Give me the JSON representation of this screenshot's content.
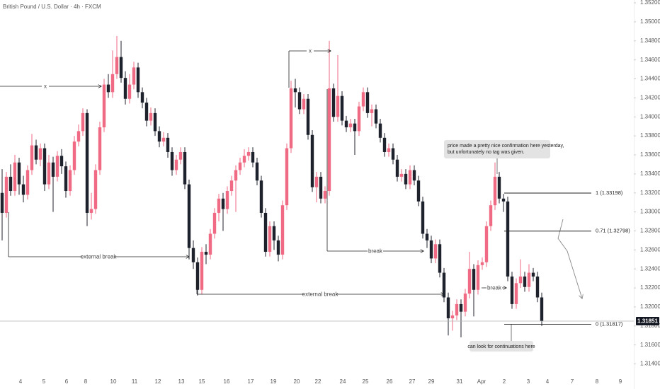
{
  "chart_data": {
    "type": "candlestick",
    "title": "British Pound / U.S. Dollar · 4h · FXCM",
    "up_color": "#ef6a82",
    "down_color": "#1e222d",
    "ylim": [
      1.313,
      1.3523
    ],
    "yticks": [
      {
        "value": 1.314,
        "label": "1.31400"
      },
      {
        "value": 1.316,
        "label": "1.31600"
      },
      {
        "value": 1.318,
        "label": "1.31800"
      },
      {
        "value": 1.32,
        "label": "1.32000"
      },
      {
        "value": 1.322,
        "label": "1.32200"
      },
      {
        "value": 1.324,
        "label": "1.32400"
      },
      {
        "value": 1.326,
        "label": "1.32600"
      },
      {
        "value": 1.328,
        "label": "1.32800"
      },
      {
        "value": 1.33,
        "label": "1.33000"
      },
      {
        "value": 1.332,
        "label": "1.33200"
      },
      {
        "value": 1.334,
        "label": "1.33400"
      },
      {
        "value": 1.336,
        "label": "1.33600"
      },
      {
        "value": 1.338,
        "label": "1.33800"
      },
      {
        "value": 1.34,
        "label": "1.34000"
      },
      {
        "value": 1.342,
        "label": "1.34200"
      },
      {
        "value": 1.344,
        "label": "1.34400"
      },
      {
        "value": 1.346,
        "label": "1.34600"
      },
      {
        "value": 1.348,
        "label": "1.34800"
      },
      {
        "value": 1.35,
        "label": "1.35000"
      },
      {
        "value": 1.352,
        "label": "1.35200"
      }
    ],
    "x_labels": [
      "4",
      "5",
      "6",
      "8",
      "10",
      "11",
      "12",
      "13",
      "15",
      "16",
      "17",
      "19",
      "20",
      "22",
      "24",
      "25",
      "26",
      "27",
      "29",
      "31",
      "Apr",
      "2",
      "3",
      "4",
      "7",
      "8",
      "9"
    ],
    "last_price": 1.31851,
    "fib_levels": [
      {
        "value": 1.33198,
        "label": "1 (1.33198)"
      },
      {
        "value": 1.32798,
        "label": "0.71 (1.32798)"
      },
      {
        "value": 1.31817,
        "label": "0 (1.31817)"
      }
    ],
    "annotations": [
      "x",
      "x",
      "external break",
      "break",
      "external break",
      "break",
      "price made a pretty nice confirmation here yesterday,",
      "but unfortunately no tag was given.",
      "can look for continuations here"
    ],
    "candles": [
      [
        1.332,
        1.3345,
        1.327,
        1.3299
      ],
      [
        1.3299,
        1.3342,
        1.3294,
        1.3337
      ],
      [
        1.3337,
        1.335,
        1.3317,
        1.3322
      ],
      [
        1.3322,
        1.336,
        1.3317,
        1.3352
      ],
      [
        1.3352,
        1.3357,
        1.3318,
        1.3329
      ],
      [
        1.3329,
        1.3338,
        1.331,
        1.3318
      ],
      [
        1.3318,
        1.3349,
        1.3313,
        1.3344
      ],
      [
        1.3344,
        1.3382,
        1.3339,
        1.337
      ],
      [
        1.337,
        1.3376,
        1.335,
        1.3355
      ],
      [
        1.3355,
        1.3372,
        1.3348,
        1.3367
      ],
      [
        1.3367,
        1.3372,
        1.3322,
        1.3329
      ],
      [
        1.3329,
        1.336,
        1.3324,
        1.3352
      ],
      [
        1.3352,
        1.3358,
        1.33,
        1.3337
      ],
      [
        1.3337,
        1.3364,
        1.3332,
        1.3359
      ],
      [
        1.3359,
        1.3366,
        1.334,
        1.3348
      ],
      [
        1.3348,
        1.3353,
        1.3315,
        1.3322
      ],
      [
        1.3322,
        1.3349,
        1.3317,
        1.3344
      ],
      [
        1.3344,
        1.338,
        1.3339,
        1.3374
      ],
      [
        1.3374,
        1.3392,
        1.3369,
        1.3385
      ],
      [
        1.3385,
        1.3409,
        1.338,
        1.3404
      ],
      [
        1.3404,
        1.3408,
        1.3285,
        1.3299
      ],
      [
        1.3299,
        1.332,
        1.3292,
        1.3303
      ],
      [
        1.3303,
        1.335,
        1.3298,
        1.3344
      ],
      [
        1.3344,
        1.3395,
        1.3339,
        1.3389
      ],
      [
        1.3389,
        1.344,
        1.3384,
        1.3434
      ],
      [
        1.3434,
        1.3445,
        1.342,
        1.3426
      ],
      [
        1.3426,
        1.347,
        1.342,
        1.3445
      ],
      [
        1.3445,
        1.3485,
        1.344,
        1.3463
      ],
      [
        1.3463,
        1.348,
        1.3436,
        1.3441
      ],
      [
        1.3441,
        1.3448,
        1.3413,
        1.3419
      ],
      [
        1.3419,
        1.3445,
        1.3414,
        1.3434
      ],
      [
        1.3434,
        1.3458,
        1.3429,
        1.3452
      ],
      [
        1.3452,
        1.3457,
        1.342,
        1.3426
      ],
      [
        1.3426,
        1.3431,
        1.3409,
        1.3415
      ],
      [
        1.3415,
        1.342,
        1.339,
        1.3396
      ],
      [
        1.3396,
        1.341,
        1.3391,
        1.3404
      ],
      [
        1.3404,
        1.3409,
        1.338,
        1.3385
      ],
      [
        1.3385,
        1.339,
        1.3368,
        1.3374
      ],
      [
        1.3374,
        1.3384,
        1.3369,
        1.3378
      ],
      [
        1.3378,
        1.3383,
        1.3357,
        1.3363
      ],
      [
        1.3363,
        1.3368,
        1.3338,
        1.3344
      ],
      [
        1.3344,
        1.336,
        1.3339,
        1.3355
      ],
      [
        1.3355,
        1.3368,
        1.335,
        1.3363
      ],
      [
        1.3363,
        1.3368,
        1.3324,
        1.3329
      ],
      [
        1.3329,
        1.3334,
        1.325,
        1.3262
      ],
      [
        1.3262,
        1.327,
        1.324,
        1.3247
      ],
      [
        1.3247,
        1.3252,
        1.3212,
        1.3218
      ],
      [
        1.3218,
        1.3263,
        1.3213,
        1.3258
      ],
      [
        1.3258,
        1.3266,
        1.3245,
        1.3255
      ],
      [
        1.3255,
        1.3282,
        1.325,
        1.3277
      ],
      [
        1.3277,
        1.3304,
        1.3272,
        1.3299
      ],
      [
        1.3299,
        1.3319,
        1.329,
        1.3314
      ],
      [
        1.3314,
        1.332,
        1.328,
        1.3303
      ],
      [
        1.3303,
        1.3327,
        1.3298,
        1.3322
      ],
      [
        1.3322,
        1.3338,
        1.3317,
        1.3333
      ],
      [
        1.3333,
        1.3349,
        1.33,
        1.3344
      ],
      [
        1.3344,
        1.3357,
        1.3339,
        1.3352
      ],
      [
        1.3352,
        1.3366,
        1.3347,
        1.3359
      ],
      [
        1.3359,
        1.3368,
        1.3354,
        1.3363
      ],
      [
        1.3363,
        1.3368,
        1.3347,
        1.3352
      ],
      [
        1.3352,
        1.3357,
        1.3328,
        1.3333
      ],
      [
        1.3333,
        1.3338,
        1.3294,
        1.3299
      ],
      [
        1.3299,
        1.3304,
        1.3253,
        1.3258
      ],
      [
        1.3258,
        1.329,
        1.3253,
        1.3285
      ],
      [
        1.3285,
        1.329,
        1.326,
        1.327
      ],
      [
        1.327,
        1.3275,
        1.3248,
        1.3255
      ],
      [
        1.3255,
        1.3312,
        1.325,
        1.3307
      ],
      [
        1.3307,
        1.3372,
        1.3302,
        1.3367
      ],
      [
        1.3367,
        1.3438,
        1.3362,
        1.343
      ],
      [
        1.343,
        1.344,
        1.341,
        1.3426
      ],
      [
        1.3426,
        1.3431,
        1.3403,
        1.3408
      ],
      [
        1.3408,
        1.3424,
        1.3403,
        1.3419
      ],
      [
        1.3419,
        1.3424,
        1.3376,
        1.3381
      ],
      [
        1.3381,
        1.3386,
        1.3321,
        1.3326
      ],
      [
        1.3326,
        1.3342,
        1.331,
        1.3337
      ],
      [
        1.3337,
        1.3342,
        1.3309,
        1.3314
      ],
      [
        1.3314,
        1.3327,
        1.3309,
        1.3322
      ],
      [
        1.3322,
        1.348,
        1.3317,
        1.343
      ],
      [
        1.343,
        1.3435,
        1.3395,
        1.34
      ],
      [
        1.34,
        1.3465,
        1.3395,
        1.3422
      ],
      [
        1.3422,
        1.3427,
        1.3391,
        1.3396
      ],
      [
        1.3396,
        1.3401,
        1.3384,
        1.3389
      ],
      [
        1.3389,
        1.3398,
        1.3384,
        1.3393
      ],
      [
        1.3393,
        1.3398,
        1.336,
        1.3385
      ],
      [
        1.3385,
        1.3416,
        1.338,
        1.3411
      ],
      [
        1.3411,
        1.3431,
        1.3406,
        1.3426
      ],
      [
        1.3426,
        1.3431,
        1.3399,
        1.3404
      ],
      [
        1.3404,
        1.3413,
        1.339,
        1.3408
      ],
      [
        1.3408,
        1.3413,
        1.3388,
        1.3393
      ],
      [
        1.3393,
        1.3398,
        1.3373,
        1.3378
      ],
      [
        1.3378,
        1.3383,
        1.3358,
        1.3363
      ],
      [
        1.3363,
        1.3372,
        1.3358,
        1.3367
      ],
      [
        1.3367,
        1.3372,
        1.335,
        1.3355
      ],
      [
        1.3355,
        1.336,
        1.3332,
        1.3337
      ],
      [
        1.3337,
        1.3345,
        1.3332,
        1.334
      ],
      [
        1.334,
        1.3345,
        1.3324,
        1.3329
      ],
      [
        1.3329,
        1.3349,
        1.3324,
        1.3344
      ],
      [
        1.3344,
        1.3349,
        1.3328,
        1.3333
      ],
      [
        1.3333,
        1.3338,
        1.3306,
        1.3311
      ],
      [
        1.3311,
        1.3316,
        1.3272,
        1.3277
      ],
      [
        1.3277,
        1.3282,
        1.3262,
        1.327
      ],
      [
        1.327,
        1.3275,
        1.3246,
        1.3251
      ],
      [
        1.3251,
        1.3271,
        1.3246,
        1.3266
      ],
      [
        1.3266,
        1.3271,
        1.3231,
        1.3236
      ],
      [
        1.3236,
        1.3241,
        1.3205,
        1.321
      ],
      [
        1.321,
        1.3215,
        1.317,
        1.3188
      ],
      [
        1.3188,
        1.3196,
        1.3175,
        1.3191
      ],
      [
        1.3191,
        1.3208,
        1.3186,
        1.3203
      ],
      [
        1.3203,
        1.3208,
        1.3168,
        1.3195
      ],
      [
        1.3195,
        1.3219,
        1.319,
        1.3214
      ],
      [
        1.3214,
        1.3258,
        1.3209,
        1.324
      ],
      [
        1.324,
        1.3245,
        1.319,
        1.3218
      ],
      [
        1.3218,
        1.3249,
        1.3213,
        1.3244
      ],
      [
        1.3244,
        1.3252,
        1.3239,
        1.3247
      ],
      [
        1.3247,
        1.329,
        1.3242,
        1.3285
      ],
      [
        1.3285,
        1.3312,
        1.328,
        1.3307
      ],
      [
        1.3307,
        1.3352,
        1.3302,
        1.3337
      ],
      [
        1.3337,
        1.3342,
        1.3309,
        1.3314
      ],
      [
        1.3314,
        1.3319,
        1.33,
        1.3311
      ],
      [
        1.3311,
        1.3316,
        1.3227,
        1.3232
      ],
      [
        1.3232,
        1.3237,
        1.3198,
        1.3203
      ],
      [
        1.3203,
        1.323,
        1.3198,
        1.3225
      ],
      [
        1.3225,
        1.325,
        1.322,
        1.3232
      ],
      [
        1.3232,
        1.3237,
        1.3216,
        1.3221
      ],
      [
        1.3221,
        1.3245,
        1.3216,
        1.3236
      ],
      [
        1.3236,
        1.3241,
        1.3227,
        1.3232
      ],
      [
        1.3232,
        1.3237,
        1.3205,
        1.321
      ],
      [
        1.321,
        1.3215,
        1.318,
        1.3185
      ]
    ]
  }
}
